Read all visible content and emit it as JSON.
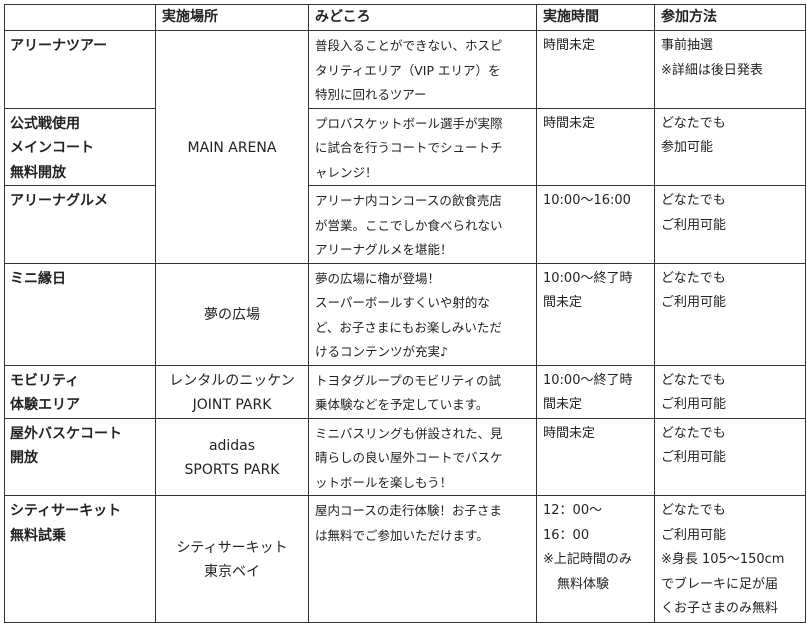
{
  "headers": [
    "",
    "実施場所",
    "みどころ",
    "実施時間",
    "参加方法"
  ],
  "rows": [
    {
      "name": [
        "アリーナツアー"
      ],
      "venue": [
        "MAIN ARENA"
      ],
      "venue_rowspan": 3,
      "highlights": [
        "普段入ることができない、ホスピ",
        "タリティエリア（VIP エリア）を",
        "特別に回れるツアー"
      ],
      "time": [
        "時間未定"
      ],
      "method": [
        "事前抽選",
        "※詳細は後日発表"
      ]
    },
    {
      "name": [
        "公式戦使用",
        "メインコート",
        "無料開放"
      ],
      "highlights": [
        "プロバスケットボール選手が実際",
        "に試合を行うコートでシュートチ",
        "ャレンジ！"
      ],
      "time": [
        "時間未定"
      ],
      "method": [
        "どなたでも",
        "参加可能"
      ]
    },
    {
      "name": [
        "アリーナグルメ"
      ],
      "highlights": [
        "アリーナ内コンコースの飲食売店",
        "が営業。ここでしか食べられない",
        "アリーナグルメを堪能！"
      ],
      "time": [
        "10:00～16:00"
      ],
      "method": [
        "どなたでも",
        "ご利用可能"
      ]
    },
    {
      "name": [
        "ミニ縁日"
      ],
      "venue": [
        "夢の広場"
      ],
      "venue_rowspan": 1,
      "highlights": [
        "夢の広場に櫓が登場！",
        "スーパーボールすくいや射的な",
        "ど、お子さまにもお楽しみいただ",
        "けるコンテンツが充実♪"
      ],
      "time": [
        "10:00～終了時",
        "間未定"
      ],
      "method": [
        "どなたでも",
        "ご利用可能"
      ]
    },
    {
      "name": [
        "モビリティ",
        "体験エリア"
      ],
      "venue": [
        "レンタルのニッケン",
        "JOINT PARK"
      ],
      "venue_rowspan": 1,
      "highlights": [
        "トヨタグループのモビリティの試",
        "乗体験などを予定しています。"
      ],
      "time": [
        "10:00～終了時",
        "間未定"
      ],
      "method": [
        "どなたでも",
        "ご利用可能"
      ]
    },
    {
      "name": [
        "屋外バスケコート",
        "開放"
      ],
      "venue": [
        "adidas",
        "SPORTS PARK"
      ],
      "venue_rowspan": 1,
      "highlights": [
        "ミニバスリングも併設された、見",
        "晴らしの良い屋外コートでバスケ",
        "ットボールを楽しもう！"
      ],
      "time": [
        "時間未定"
      ],
      "method": [
        "どなたでも",
        "ご利用可能"
      ]
    },
    {
      "name": [
        "シティサーキット",
        "無料試乗"
      ],
      "venue": [
        "シティサーキット",
        "東京ベイ"
      ],
      "venue_rowspan": 1,
      "highlights": [
        "屋内コースの走行体験！お子さま",
        "は無料でご参加いただけます。"
      ],
      "time": [
        "12：00～",
        "16：00",
        "※上記時間のみ",
        "無料体験"
      ],
      "method": [
        "どなたでも",
        "ご利用可能",
        "※身長 105～150cm",
        "でブレーキに足が届",
        "くお子さまのみ無料"
      ]
    }
  ]
}
